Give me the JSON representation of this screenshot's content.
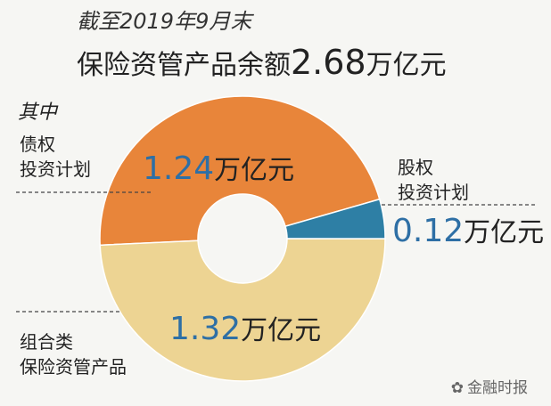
{
  "header": {
    "line1": "截至2019年9月末",
    "line2_prefix": "保险资管产品余额",
    "line2_value": "2.68",
    "line2_unit": "万亿元"
  },
  "note": "其中",
  "labels": {
    "debt": [
      "债权",
      "投资计划"
    ],
    "equity": [
      "股权",
      "投资计划"
    ],
    "combo": [
      "组合类",
      "保险资管产品"
    ]
  },
  "value_labels": {
    "debt": {
      "num": "1.24",
      "unit": "万亿元"
    },
    "equity": {
      "num": "0.12",
      "unit": "万亿元"
    },
    "combo": {
      "num": "1.32",
      "unit": "万亿元"
    }
  },
  "watermark": "金融时报",
  "colors": {
    "debt": "#e8853a",
    "equity": "#2e7fa5",
    "combo": "#edd493",
    "value_text": "#2e6fa5"
  },
  "chart_data": {
    "type": "pie",
    "donut": true,
    "total": 2.68,
    "unit": "万亿元",
    "slices": [
      {
        "name": "债权投资计划",
        "value": 1.24
      },
      {
        "name": "股权投资计划",
        "value": 0.12
      },
      {
        "name": "组合类保险资管产品",
        "value": 1.32
      }
    ]
  }
}
